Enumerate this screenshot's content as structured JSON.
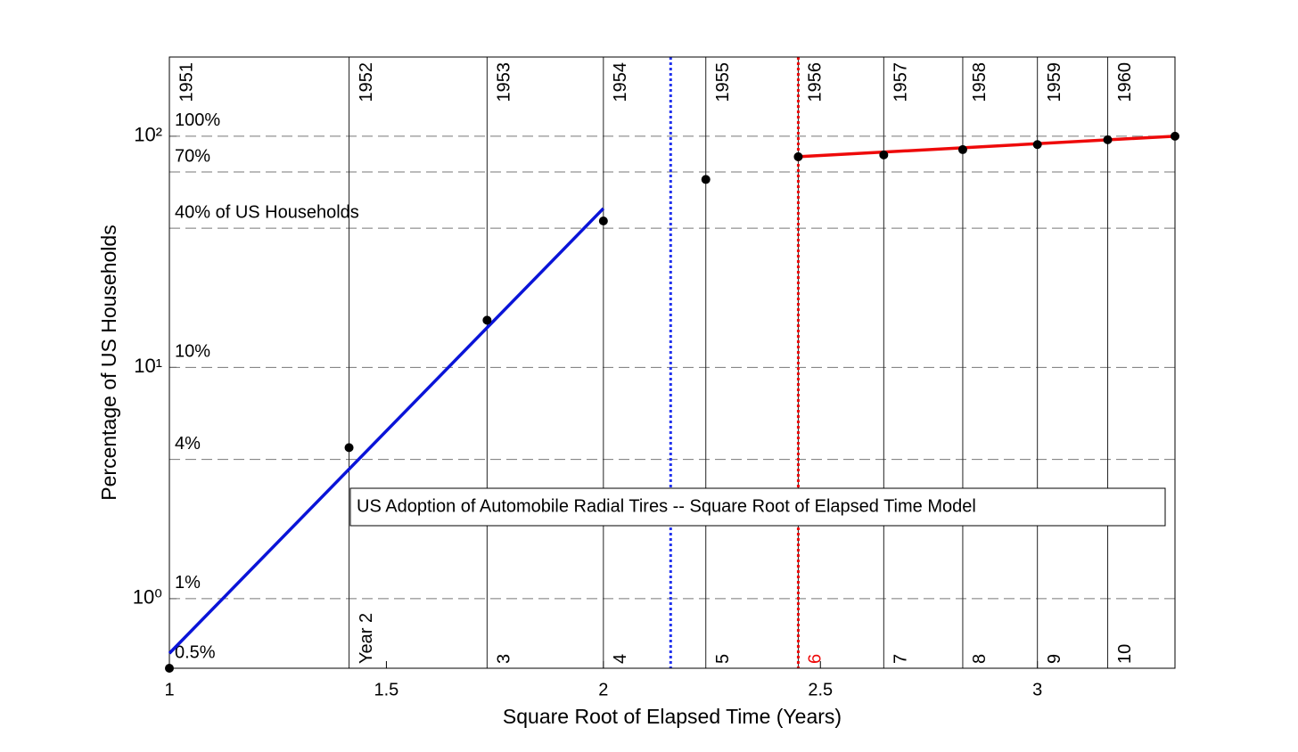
{
  "chart_data": {
    "type": "scatter",
    "title": "US Adoption of Automobile Radial Tires -- Square Root of Elapsed Time Model",
    "xlabel": "Square Root of Elapsed Time (Years)",
    "ylabel": "Percentage of US Households",
    "xlim": [
      1,
      3.317
    ],
    "ylim": [
      0.5,
      220
    ],
    "log_y": true,
    "xticks": [
      1,
      1.5,
      2,
      2.5,
      3
    ],
    "yticks": [
      {
        "value": 1,
        "label": "10⁰"
      },
      {
        "value": 10,
        "label": "10¹"
      },
      {
        "value": 100,
        "label": "10²"
      }
    ],
    "series": [
      {
        "kind": "points",
        "color": "#000000",
        "x": [
          1,
          1.414,
          1.732,
          2,
          2.236,
          2.449,
          2.646,
          2.828,
          3,
          3.162,
          3.317
        ],
        "values": [
          0.5,
          4.5,
          16,
          43,
          65,
          81.5,
          83,
          87.5,
          92,
          96.5,
          100
        ]
      },
      {
        "kind": "line",
        "color": "#0a14d8",
        "x": [
          1,
          2
        ],
        "values": [
          0.58,
          48.7
        ]
      },
      {
        "kind": "line",
        "color": "#ee0a0a",
        "x": [
          2.449,
          3.317
        ],
        "values": [
          81.5,
          100
        ]
      }
    ],
    "year_lines": {
      "x": [
        1,
        1.414,
        1.732,
        2,
        2.236,
        2.449,
        2.646,
        2.828,
        3,
        3.162
      ],
      "top_labels": [
        "1951",
        "1952",
        "1953",
        "1954",
        "1955",
        "1956",
        "1957",
        "1958",
        "1959",
        "1960"
      ],
      "bottom_labels": [
        null,
        "Year 2",
        "3",
        "4",
        "5",
        "6",
        "7",
        "8",
        "9",
        "10"
      ],
      "highlight": 5,
      "highlight_color": "#ee0a0a"
    },
    "ref_lines": {
      "values": [
        100,
        70,
        40,
        10,
        4,
        1,
        0.5
      ],
      "labels": [
        "100%",
        "70%",
        "40% of US Households",
        "10%",
        "4%",
        "1%",
        "0.5%"
      ]
    },
    "markers": [
      {
        "x": 2.155,
        "color": "#2233ee"
      },
      {
        "x": 2.449,
        "color": "#ee0a0a"
      }
    ]
  }
}
